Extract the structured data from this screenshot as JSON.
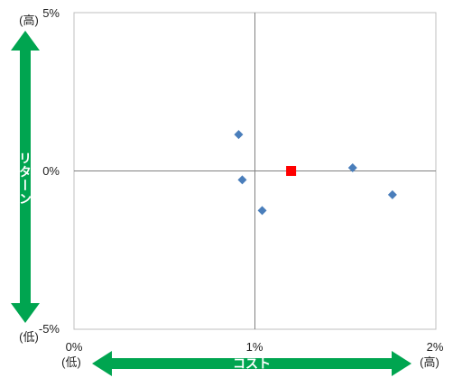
{
  "chart_data": {
    "type": "scatter",
    "x_ticks": [
      "0%",
      "1%",
      "2%"
    ],
    "y_ticks": [
      "5%",
      "0%",
      "-5%"
    ],
    "xlim": [
      0,
      2
    ],
    "ylim": [
      -5,
      5
    ],
    "axis_cross": {
      "x": 1,
      "y": 0
    },
    "grid": false,
    "series": [
      {
        "marker": "diamond",
        "color": "#4a7ebb",
        "points": [
          {
            "x": 0.91,
            "y": 1.15
          },
          {
            "x": 0.93,
            "y": -0.28
          },
          {
            "x": 1.04,
            "y": -1.25
          },
          {
            "x": 1.54,
            "y": 0.1
          },
          {
            "x": 1.76,
            "y": -0.75
          }
        ]
      },
      {
        "marker": "square",
        "color": "#ff0000",
        "points": [
          {
            "x": 1.2,
            "y": 0.0
          }
        ]
      }
    ]
  },
  "annotations": {
    "y_arrow_label": "リターン",
    "x_arrow_label": "コスト",
    "y_high": "(高)",
    "y_low": "(低)",
    "x_low": "(低)",
    "x_high": "(高)",
    "arrow_color": "#00a550"
  }
}
